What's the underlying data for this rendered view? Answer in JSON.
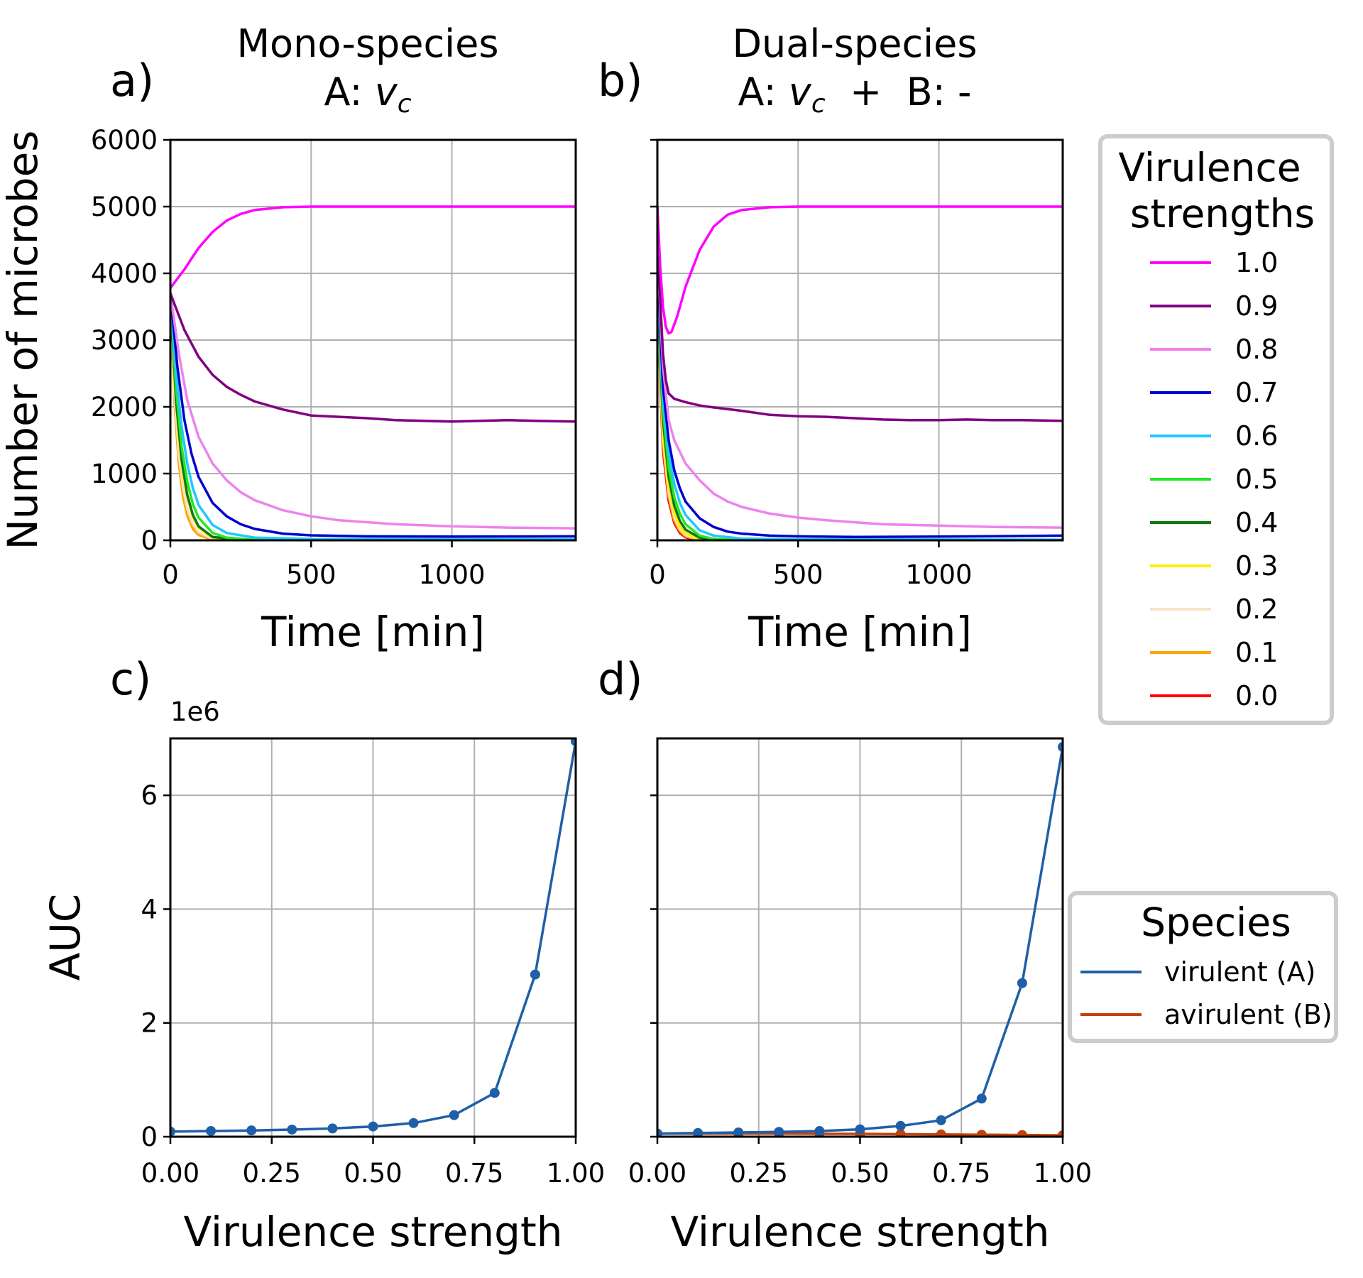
{
  "panels": {
    "a": {
      "letter": "a)",
      "title_line1": "Mono-species",
      "title_prefix": "A: ",
      "title_var": "v",
      "title_sub": "c",
      "title_suffix": ""
    },
    "b": {
      "letter": "b)",
      "title_line1": "Dual-species",
      "title_prefix": "A: ",
      "title_var": "v",
      "title_sub": "c",
      "title_suffix": "  +  B: -"
    },
    "c": {
      "letter": "c)",
      "offset_label": "1e6"
    },
    "d": {
      "letter": "d)"
    }
  },
  "legends": {
    "virulence": {
      "title_line1": "Virulence",
      "title_line2": "strengths"
    },
    "species": {
      "title": "Species"
    }
  },
  "chart_data": [
    {
      "id": "a",
      "type": "line",
      "title": "Mono-species A: v_c",
      "xlabel": "Time [min]",
      "ylabel": "Number of microbes",
      "xlim": [
        0,
        1440
      ],
      "ylim": [
        0,
        6000
      ],
      "xticks": [
        0,
        500,
        1000
      ],
      "yticks": [
        0,
        1000,
        2000,
        3000,
        4000,
        5000,
        6000
      ],
      "grid": true,
      "series": [
        {
          "name": "1.0",
          "color": "#ff00ff",
          "x": [
            0,
            50,
            100,
            150,
            200,
            250,
            300,
            400,
            500,
            700,
            1000,
            1440
          ],
          "y": [
            3780,
            4060,
            4380,
            4620,
            4790,
            4890,
            4950,
            4990,
            5000,
            5000,
            5000,
            5000
          ]
        },
        {
          "name": "0.9",
          "color": "#800080",
          "x": [
            0,
            50,
            100,
            150,
            200,
            250,
            300,
            400,
            500,
            600,
            700,
            800,
            900,
            1000,
            1100,
            1200,
            1300,
            1440
          ],
          "y": [
            3700,
            3150,
            2750,
            2480,
            2300,
            2180,
            2080,
            1960,
            1870,
            1850,
            1830,
            1800,
            1790,
            1780,
            1790,
            1800,
            1790,
            1780
          ]
        },
        {
          "name": "0.8",
          "color": "#ee82ee",
          "x": [
            0,
            30,
            60,
            100,
            150,
            200,
            250,
            300,
            400,
            500,
            600,
            800,
            1000,
            1200,
            1440
          ],
          "y": [
            3700,
            2800,
            2100,
            1550,
            1150,
            900,
            720,
            600,
            450,
            360,
            300,
            240,
            210,
            190,
            180
          ]
        },
        {
          "name": "0.7",
          "color": "#0000cd",
          "x": [
            0,
            25,
            50,
            75,
            100,
            150,
            200,
            250,
            300,
            400,
            500,
            700,
            1000,
            1440
          ],
          "y": [
            3700,
            2600,
            1800,
            1300,
            950,
            560,
            360,
            240,
            170,
            100,
            75,
            60,
            55,
            60
          ]
        },
        {
          "name": "0.6",
          "color": "#1ec8ff",
          "x": [
            0,
            20,
            40,
            60,
            80,
            100,
            150,
            200,
            300,
            500,
            1440
          ],
          "y": [
            3700,
            2500,
            1700,
            1150,
            780,
            530,
            230,
            110,
            40,
            20,
            15
          ]
        },
        {
          "name": "0.5",
          "color": "#22e822",
          "x": [
            0,
            20,
            40,
            60,
            80,
            100,
            150,
            200,
            300,
            1440
          ],
          "y": [
            3700,
            2300,
            1400,
            880,
            540,
            340,
            110,
            40,
            10,
            5
          ]
        },
        {
          "name": "0.4",
          "color": "#117711",
          "x": [
            0,
            20,
            40,
            60,
            80,
            100,
            150,
            250,
            1440
          ],
          "y": [
            3700,
            2100,
            1200,
            680,
            380,
            210,
            50,
            5,
            2
          ]
        },
        {
          "name": "0.3",
          "color": "#ffee00",
          "x": [
            0,
            15,
            30,
            45,
            60,
            80,
            100,
            150,
            250,
            1440
          ],
          "y": [
            3700,
            2400,
            1550,
            1000,
            650,
            350,
            190,
            40,
            3,
            1
          ]
        },
        {
          "name": "0.2",
          "color": "#f7e2c4",
          "x": [
            0,
            15,
            30,
            45,
            60,
            80,
            100,
            150,
            1440
          ],
          "y": [
            3700,
            2200,
            1300,
            790,
            470,
            240,
            120,
            20,
            0
          ]
        },
        {
          "name": "0.1",
          "color": "#ffa500",
          "x": [
            0,
            15,
            30,
            45,
            60,
            80,
            100,
            150,
            1440
          ],
          "y": [
            3700,
            2050,
            1150,
            650,
            370,
            170,
            80,
            10,
            0
          ]
        },
        {
          "name": "0.0",
          "color": "#ff0000",
          "x": [
            0,
            10,
            20,
            30,
            45,
            60,
            80,
            100,
            150,
            1440
          ],
          "y": [
            3700,
            2600,
            1850,
            1300,
            780,
            460,
            220,
            100,
            10,
            0
          ]
        }
      ]
    },
    {
      "id": "b",
      "type": "line",
      "title": "Dual-species A: v_c + B: -",
      "xlabel": "Time [min]",
      "ylabel": "",
      "xlim": [
        0,
        1440
      ],
      "ylim": [
        0,
        6000
      ],
      "xticks": [
        0,
        500,
        1000
      ],
      "yticks": [
        0,
        1000,
        2000,
        3000,
        4000,
        5000,
        6000
      ],
      "grid": true,
      "series": [
        {
          "name": "1.0",
          "color": "#ff00ff",
          "x": [
            0,
            10,
            20,
            30,
            40,
            50,
            70,
            100,
            150,
            200,
            250,
            300,
            400,
            500,
            700,
            1000,
            1440
          ],
          "y": [
            5000,
            4100,
            3500,
            3200,
            3100,
            3120,
            3350,
            3800,
            4350,
            4700,
            4880,
            4950,
            4990,
            5000,
            5000,
            5000,
            5000
          ]
        },
        {
          "name": "0.9",
          "color": "#800080",
          "x": [
            0,
            10,
            20,
            30,
            40,
            60,
            100,
            150,
            200,
            300,
            400,
            500,
            600,
            700,
            800,
            900,
            1000,
            1100,
            1200,
            1300,
            1440
          ],
          "y": [
            5000,
            3600,
            2800,
            2400,
            2200,
            2120,
            2070,
            2020,
            1990,
            1940,
            1880,
            1860,
            1850,
            1830,
            1810,
            1800,
            1800,
            1810,
            1800,
            1800,
            1790
          ]
        },
        {
          "name": "0.8",
          "color": "#ee82ee",
          "x": [
            0,
            10,
            20,
            40,
            60,
            100,
            150,
            200,
            250,
            300,
            400,
            500,
            600,
            800,
            1000,
            1200,
            1440
          ],
          "y": [
            5000,
            3400,
            2600,
            1800,
            1500,
            1150,
            900,
            700,
            580,
            500,
            400,
            340,
            300,
            240,
            220,
            200,
            190
          ]
        },
        {
          "name": "0.7",
          "color": "#0000cd",
          "x": [
            0,
            10,
            20,
            40,
            60,
            80,
            100,
            150,
            200,
            250,
            300,
            400,
            500,
            700,
            1000,
            1440
          ],
          "y": [
            5000,
            3200,
            2300,
            1500,
            1050,
            780,
            580,
            330,
            200,
            130,
            100,
            70,
            60,
            50,
            55,
            70
          ]
        },
        {
          "name": "0.6",
          "color": "#1ec8ff",
          "x": [
            0,
            10,
            20,
            40,
            60,
            80,
            100,
            150,
            200,
            300,
            500,
            1440
          ],
          "y": [
            5000,
            3000,
            2100,
            1300,
            850,
            560,
            380,
            150,
            70,
            25,
            15,
            10
          ]
        },
        {
          "name": "0.5",
          "color": "#22e822",
          "x": [
            0,
            10,
            20,
            40,
            60,
            80,
            100,
            150,
            200,
            300,
            1440
          ],
          "y": [
            5000,
            2850,
            1950,
            1100,
            650,
            400,
            240,
            70,
            20,
            5,
            2
          ]
        },
        {
          "name": "0.4",
          "color": "#117711",
          "x": [
            0,
            10,
            20,
            40,
            60,
            80,
            100,
            150,
            250,
            1440
          ],
          "y": [
            5000,
            2700,
            1800,
            950,
            520,
            290,
            160,
            40,
            5,
            0
          ]
        },
        {
          "name": "0.3",
          "color": "#ffee00",
          "x": [
            0,
            10,
            20,
            40,
            60,
            80,
            100,
            150,
            1440
          ],
          "y": [
            5000,
            2600,
            1650,
            820,
            420,
            210,
            110,
            20,
            0
          ]
        },
        {
          "name": "0.2",
          "color": "#f7e2c4",
          "x": [
            0,
            10,
            20,
            40,
            60,
            80,
            100,
            150,
            1440
          ],
          "y": [
            5000,
            2500,
            1550,
            730,
            350,
            170,
            80,
            10,
            0
          ]
        },
        {
          "name": "0.1",
          "color": "#ffa500",
          "x": [
            0,
            10,
            20,
            40,
            60,
            80,
            100,
            150,
            1440
          ],
          "y": [
            5000,
            2400,
            1450,
            660,
            300,
            140,
            60,
            5,
            0
          ]
        },
        {
          "name": "0.0",
          "color": "#ff0000",
          "x": [
            0,
            10,
            20,
            40,
            60,
            80,
            100,
            150,
            1440
          ],
          "y": [
            5000,
            2300,
            1350,
            590,
            260,
            110,
            45,
            3,
            0
          ]
        }
      ]
    },
    {
      "id": "c",
      "type": "line",
      "xlabel": "Virulence strength",
      "ylabel": "AUC",
      "xlim": [
        0,
        1
      ],
      "ylim": [
        0,
        7000000
      ],
      "xticks": [
        0,
        0.25,
        0.5,
        0.75,
        1
      ],
      "xtick_labels": [
        "0.00",
        "0.25",
        "0.50",
        "0.75",
        "1.00"
      ],
      "yticks": [
        0,
        2000000,
        4000000,
        6000000
      ],
      "ytick_labels": [
        "0",
        "2",
        "4",
        "6"
      ],
      "grid": true,
      "series": [
        {
          "name": "virulent (A)",
          "color": "#1f5fa8",
          "markers": true,
          "x": [
            0,
            0.1,
            0.2,
            0.3,
            0.4,
            0.5,
            0.6,
            0.7,
            0.8,
            0.9,
            1.0
          ],
          "y": [
            90000,
            100000,
            110000,
            125000,
            145000,
            180000,
            240000,
            380000,
            770000,
            2850000,
            6950000
          ]
        }
      ]
    },
    {
      "id": "d",
      "type": "line",
      "xlabel": "Virulence strength",
      "ylabel": "",
      "xlim": [
        0,
        1
      ],
      "ylim": [
        0,
        7000000
      ],
      "xticks": [
        0,
        0.25,
        0.5,
        0.75,
        1
      ],
      "xtick_labels": [
        "0.00",
        "0.25",
        "0.50",
        "0.75",
        "1.00"
      ],
      "yticks": [
        0,
        2000000,
        4000000,
        6000000
      ],
      "ytick_labels": [
        "",
        "",
        "",
        ""
      ],
      "grid": true,
      "series": [
        {
          "name": "virulent (A)",
          "color": "#1f5fa8",
          "markers": true,
          "x": [
            0,
            0.1,
            0.2,
            0.3,
            0.4,
            0.5,
            0.6,
            0.7,
            0.8,
            0.9,
            1.0
          ],
          "y": [
            55000,
            65000,
            75000,
            85000,
            100000,
            130000,
            190000,
            290000,
            670000,
            2700000,
            6850000
          ]
        },
        {
          "name": "avirulent (B)",
          "color": "#c3410c",
          "markers": true,
          "x": [
            0,
            0.1,
            0.2,
            0.3,
            0.4,
            0.5,
            0.6,
            0.7,
            0.8,
            0.9,
            1.0
          ],
          "y": [
            55000,
            55000,
            55000,
            55000,
            50000,
            50000,
            45000,
            40000,
            35000,
            30000,
            25000
          ]
        }
      ]
    }
  ]
}
